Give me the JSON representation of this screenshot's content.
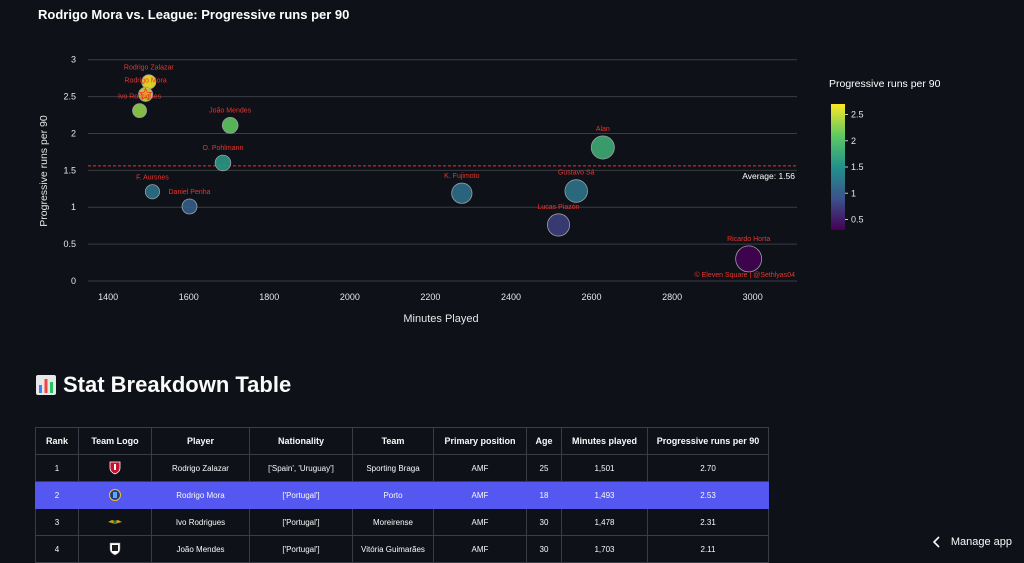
{
  "chart_data": {
    "type": "scatter",
    "title": "Rodrigo Mora vs. League: Progressive runs per 90",
    "xlabel": "Minutes Played",
    "ylabel": "Progressive runs per 90",
    "xlim": [
      1350,
      3110
    ],
    "ylim": [
      0,
      3.05
    ],
    "xticks": [
      1400,
      1600,
      1800,
      2000,
      2200,
      2400,
      2600,
      2800,
      3000
    ],
    "yticks": [
      0,
      0.5,
      1,
      1.5,
      2,
      2.5,
      3
    ],
    "average": 1.56,
    "average_label": "Average: 1.56",
    "credit": "© Eleven Square | @Sethlyas04",
    "colorbar": {
      "title": "Progressive runs per 90",
      "min": 0.3,
      "max": 2.7,
      "ticks": [
        0.5,
        1,
        1.5,
        2,
        2.5
      ]
    },
    "points": [
      {
        "name": "Rodrigo Zalazar",
        "x": 1501,
        "y": 2.7
      },
      {
        "name": "Rodrigo Mora",
        "x": 1493,
        "y": 2.53,
        "highlight": true
      },
      {
        "name": "Ivo Rodrigues",
        "x": 1478,
        "y": 2.31
      },
      {
        "name": "João Mendes",
        "x": 1703,
        "y": 2.11
      },
      {
        "name": "O. Pohlmann",
        "x": 1685,
        "y": 1.6
      },
      {
        "name": "F. Aursnes",
        "x": 1510,
        "y": 1.21
      },
      {
        "name": "Daniel Penha",
        "x": 1602,
        "y": 1.01
      },
      {
        "name": "K. Fujimoto",
        "x": 2278,
        "y": 1.19
      },
      {
        "name": "Alan",
        "x": 2628,
        "y": 1.81
      },
      {
        "name": "Gustavo Sá",
        "x": 2562,
        "y": 1.22
      },
      {
        "name": "Lucas Piazón",
        "x": 2518,
        "y": 0.76
      },
      {
        "name": "Ricardo Horta",
        "x": 2990,
        "y": 0.3
      }
    ]
  },
  "section": {
    "title": "Stat Breakdown Table"
  },
  "table": {
    "headers": [
      "Rank",
      "Team Logo",
      "Player",
      "Nationality",
      "Team",
      "Primary position",
      "Age",
      "Minutes played",
      "Progressive runs per 90"
    ],
    "rows": [
      {
        "rank": "1",
        "logo": "braga-logo",
        "player": "Rodrigo Zalazar",
        "nationality": "['Spain', 'Uruguay']",
        "team": "Sporting Braga",
        "position": "AMF",
        "age": "25",
        "minutes": "1,501",
        "runs": "2.70"
      },
      {
        "rank": "2",
        "logo": "porto-logo",
        "player": "Rodrigo Mora",
        "nationality": "['Portugal']",
        "team": "Porto",
        "position": "AMF",
        "age": "18",
        "minutes": "1,493",
        "runs": "2.53"
      },
      {
        "rank": "3",
        "logo": "moreirense-logo",
        "player": "Ivo Rodrigues",
        "nationality": "['Portugal']",
        "team": "Moreirense",
        "position": "AMF",
        "age": "30",
        "minutes": "1,478",
        "runs": "2.31"
      },
      {
        "rank": "4",
        "logo": "vitoria-logo",
        "player": "João Mendes",
        "nationality": "['Portugal']",
        "team": "Vitória Guimarães",
        "position": "AMF",
        "age": "30",
        "minutes": "1,703",
        "runs": "2.11"
      }
    ]
  },
  "footer": {
    "manage_label": "Manage app"
  },
  "colors": {
    "background": "#0e1117",
    "highlight_row": "#5457f0",
    "label_red": "#e8352e",
    "average_line": "#e8352e"
  }
}
